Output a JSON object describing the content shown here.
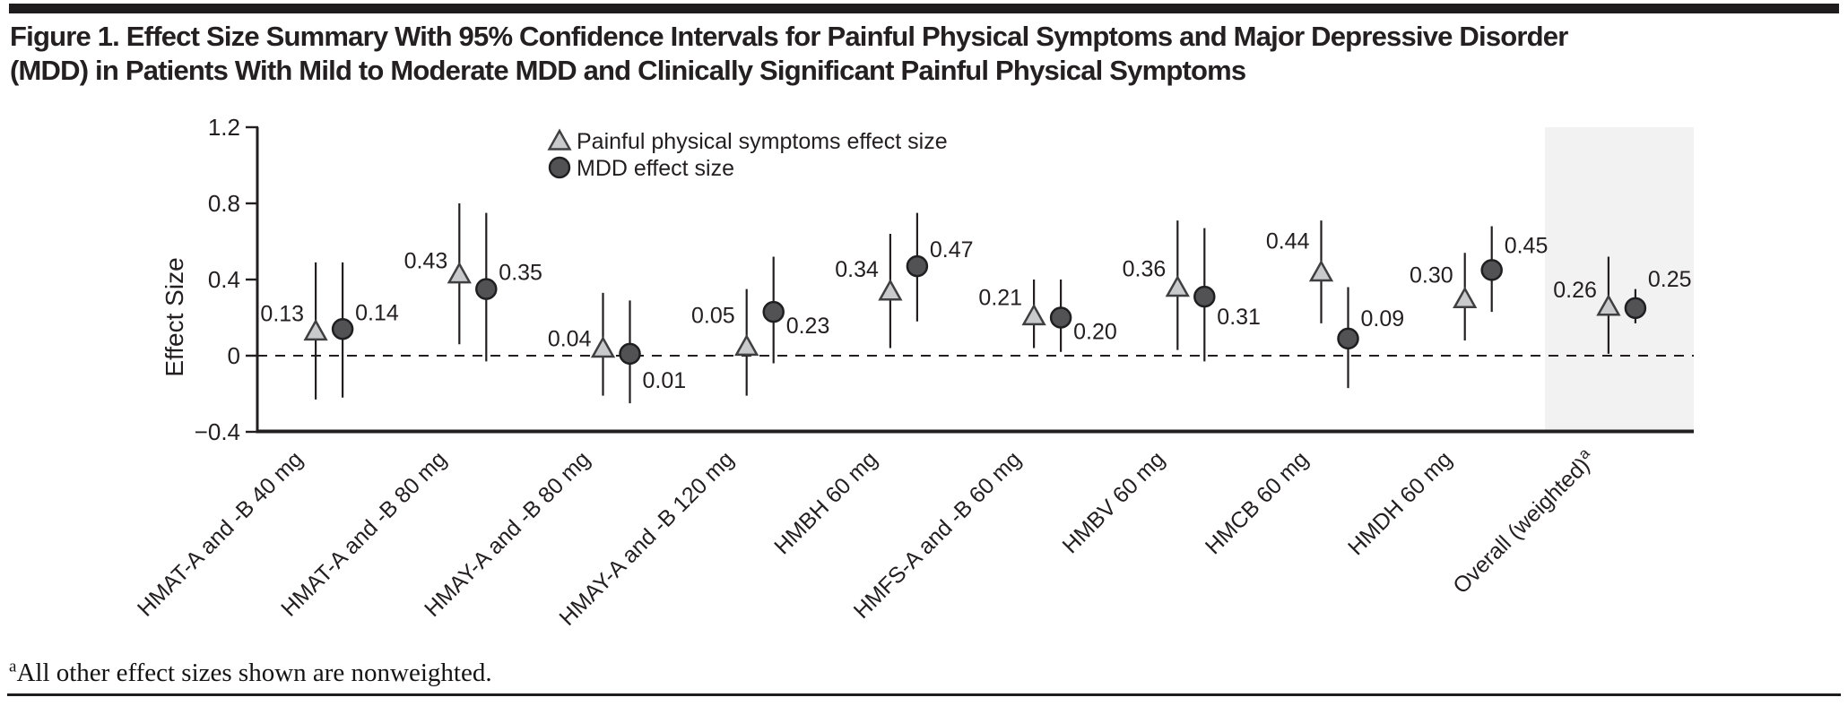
{
  "figure": {
    "title_line1": "Figure 1. Effect Size Summary With 95% Confidence Intervals for Painful Physical Symptoms and Major Depressive Disorder",
    "title_line2": "(MDD) in Patients With Mild to Moderate MDD and Clinically Significant Painful Physical Symptoms",
    "footnote_marker": "a",
    "footnote_text": "All other effect sizes shown are nonweighted."
  },
  "chart_data": {
    "type": "scatter",
    "title": "",
    "xlabel": "",
    "ylabel": "Effect Size",
    "ylim": [
      -0.4,
      1.2
    ],
    "yticks": [
      1.2,
      0.8,
      0.4,
      0,
      -0.4
    ],
    "ytick_labels": [
      "1.2",
      "0.8",
      "0.4",
      "0",
      "−0.4"
    ],
    "grid": false,
    "zero_line_dashed": true,
    "legend_position": "top-inside",
    "legend": [
      {
        "marker": "triangle",
        "label": "Painful physical symptoms effect size"
      },
      {
        "marker": "circle",
        "label": "MDD effect size"
      }
    ],
    "categories": [
      "HMAT-A and -B 40 mg",
      "HMAT-A and -B 80 mg",
      "HMAY-A and -B 80 mg",
      "HMAY-A and -B 120 mg",
      "HMBH 60 mg",
      "HMFS-A and -B 60 mg",
      "HMBV 60 mg",
      "HMCB 60 mg",
      "HMDH 60 mg",
      "Overall (weighted)"
    ],
    "category_superscripts": {
      "9": "a"
    },
    "highlighted_category_index": 9,
    "series": [
      {
        "name": "Painful physical symptoms effect size",
        "marker": "triangle",
        "values": [
          0.13,
          0.43,
          0.04,
          0.05,
          0.34,
          0.21,
          0.36,
          0.44,
          0.3,
          0.26
        ],
        "ci_low": [
          -0.23,
          0.06,
          -0.21,
          -0.21,
          0.04,
          0.04,
          0.03,
          0.17,
          0.08,
          0.01
        ],
        "ci_high": [
          0.49,
          0.8,
          0.33,
          0.35,
          0.64,
          0.4,
          0.71,
          0.71,
          0.54,
          0.52
        ]
      },
      {
        "name": "MDD effect size",
        "marker": "circle",
        "values": [
          0.14,
          0.35,
          0.01,
          0.23,
          0.47,
          0.2,
          0.31,
          0.09,
          0.45,
          0.25
        ],
        "ci_low": [
          -0.22,
          -0.03,
          -0.25,
          -0.04,
          0.18,
          0.02,
          -0.03,
          -0.17,
          0.23,
          0.17
        ],
        "ci_high": [
          0.49,
          0.75,
          0.29,
          0.52,
          0.75,
          0.4,
          0.67,
          0.36,
          0.68,
          0.35
        ]
      }
    ],
    "label_offsets": {
      "triangle_dy": [
        -11,
        -6,
        -2,
        -26,
        -16,
        -12,
        -12,
        -26,
        -18,
        -10
      ],
      "circle_dy": [
        -10,
        -10,
        38,
        24,
        -10,
        24,
        31,
        -14,
        -19,
        -24
      ]
    },
    "colors": {
      "ink": "#231f20",
      "triangle_fill": "#c9cacb",
      "triangle_stroke": "#3f3f41",
      "circle_fill": "#525254",
      "circle_stroke": "#1f1f21",
      "highlight_band": "#f2f2f3"
    }
  }
}
